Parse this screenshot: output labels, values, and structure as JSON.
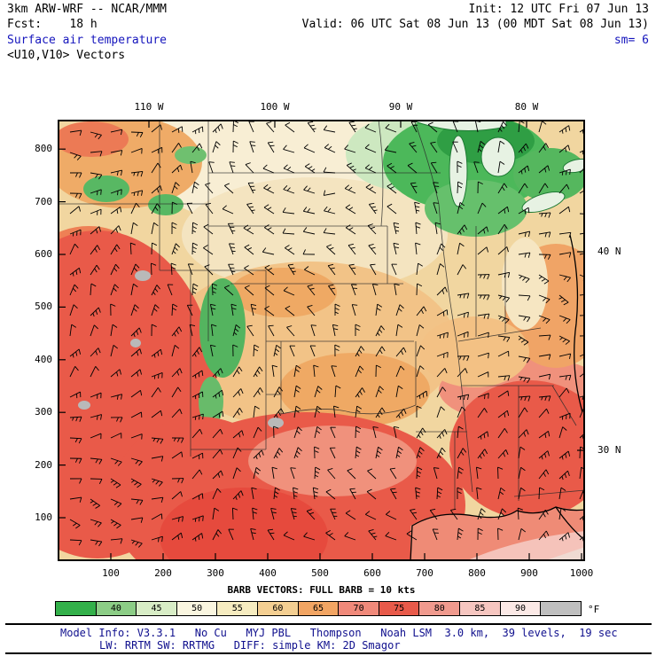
{
  "header": {
    "model": "3km ARW-WRF -- NCAR/MMM",
    "init": "Init: 12 UTC Fri 07 Jun 13",
    "fcst": "Fcst:    18 h",
    "valid": "Valid: 06 UTC Sat 08 Jun 13 (00 MDT Sat 08 Jun 13)",
    "field": "Surface air temperature",
    "smoothing": "sm= 6",
    "vectors": "<U10,V10> Vectors"
  },
  "map": {
    "x_ticks": [
      "100",
      "200",
      "300",
      "400",
      "500",
      "600",
      "700",
      "800",
      "900",
      "1000"
    ],
    "y_ticks": [
      "100",
      "200",
      "300",
      "400",
      "500",
      "600",
      "700",
      "800"
    ],
    "lon_labels": [
      "110 W",
      "100 W",
      "90 W",
      "80 W"
    ],
    "lat_labels": [
      "40 N",
      "30 N"
    ]
  },
  "barb_legend": "BARB VECTORS: FULL BARB = 10 kts",
  "colorbar": {
    "unit": "°F",
    "labels": [
      "40",
      "45",
      "50",
      "55",
      "60",
      "65",
      "70",
      "75",
      "80",
      "85",
      "90"
    ],
    "colors": [
      "#33b04a",
      "#8ccd86",
      "#d8edc6",
      "#faf6e0",
      "#f6ecc0",
      "#f4cf92",
      "#f2a563",
      "#f0897a",
      "#e85a4a",
      "#f09a8e",
      "#f6c6c0",
      "#fbe9e6",
      "#bfbfbf"
    ]
  },
  "footer": {
    "line1": "Model Info: V3.3.1   No Cu   MYJ PBL   Thompson   Noah LSM  3.0 km,  39 levels,  19 sec",
    "line2": "LW: RRTM SW: RRTMG   DIFF: simple KM: 2D Smagor"
  }
}
